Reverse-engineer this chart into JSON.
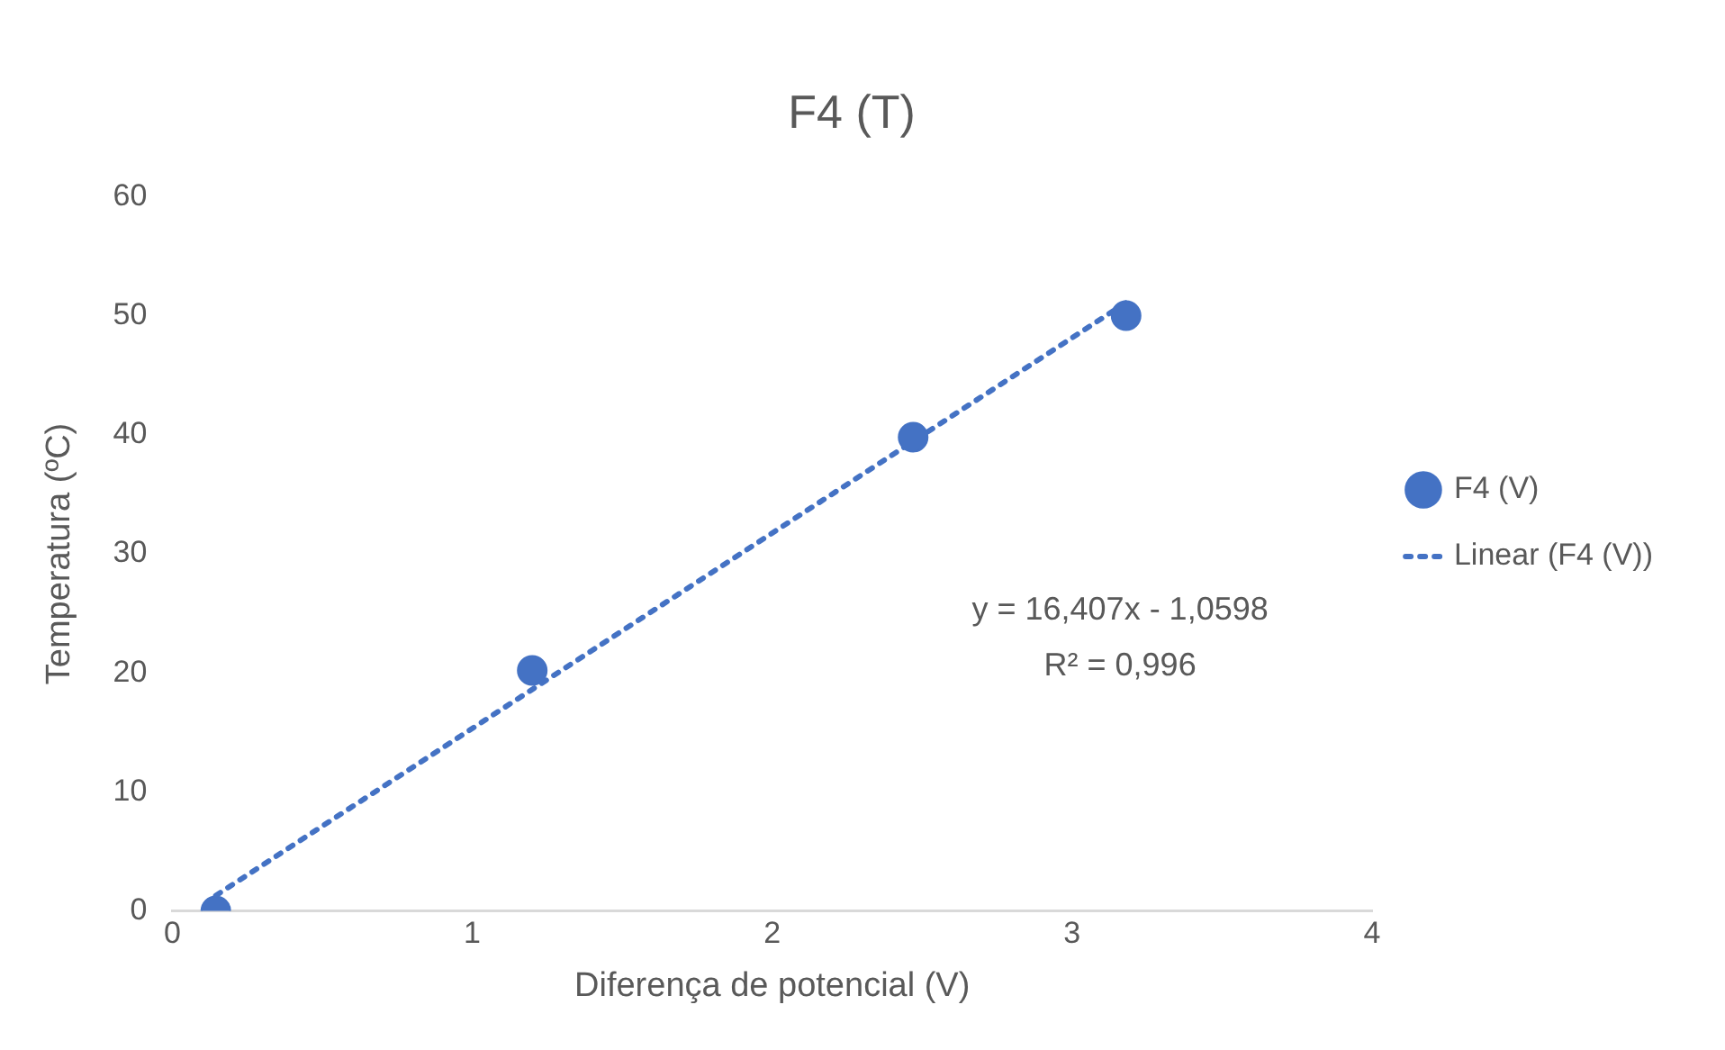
{
  "chart_data": {
    "type": "scatter",
    "title": "F4 (T)",
    "xlabel": "Diferença de potencial (V)",
    "ylabel": "Temperatura (ºC)",
    "xlim": [
      0,
      4
    ],
    "xticks": [
      0,
      1,
      2,
      3,
      4
    ],
    "ylim": [
      0,
      60
    ],
    "yticks": [
      0,
      10,
      20,
      30,
      40,
      50,
      60
    ],
    "grid": false,
    "legend": "right",
    "annotations": [
      "y = 16,407x - 1,0598",
      "R² = 0,996"
    ],
    "series": [
      {
        "name": "F4 (V)",
        "type": "scatter",
        "color": "#4472c4",
        "marker": "circle",
        "x": [
          0.145,
          1.2,
          2.47,
          3.18
        ],
        "values": [
          0,
          20.2,
          39.8,
          50
        ]
      },
      {
        "name": "Linear (F4 (V))",
        "type": "line",
        "color": "#4472c4",
        "line_style": "dotted",
        "marker": "none",
        "x": [
          0.145,
          3.18
        ],
        "values": [
          1.3,
          51.1
        ]
      }
    ]
  }
}
